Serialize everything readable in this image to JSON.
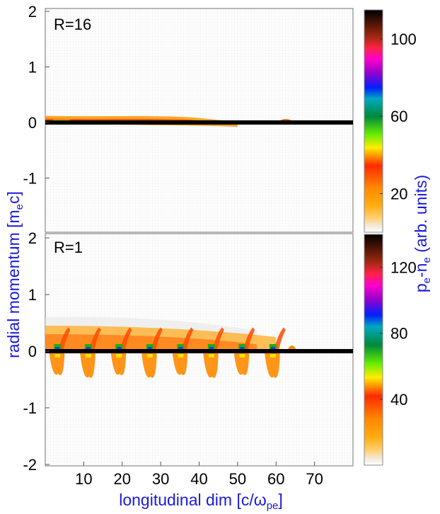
{
  "chart_data": [
    {
      "type": "heatmap",
      "panel_label": "R=16",
      "ylabel": "radial momentum [m",
      "ylabel_sub": "e",
      "ylabel_tail": "c]",
      "xlim": [
        0,
        80
      ],
      "ylim": [
        -2,
        2
      ],
      "yticks": [
        2,
        1,
        0,
        -1
      ],
      "colorbar": {
        "label_main": "p",
        "label_sub1": "e",
        "label_mid": "-n",
        "label_sub2": "e",
        "label_tail": " (arb. units)",
        "range": [
          0,
          115
        ],
        "ticks": [
          20,
          60,
          100
        ]
      },
      "features": {
        "beam_line_y": 0,
        "beam_line_x": [
          0,
          80
        ],
        "upper_band": {
          "x_start": 0,
          "x_end": 52,
          "y_max": 0.12
        },
        "lower_band": {
          "x_start": 5,
          "x_end": 50,
          "y_min": -0.08
        },
        "small_blob_x": 62.5
      }
    },
    {
      "type": "heatmap",
      "panel_label": "R=1",
      "xlabel": "longitudinal dim [c/ω",
      "xlabel_sub": "pe",
      "xlabel_tail": "]",
      "xlim": [
        0,
        80
      ],
      "ylim": [
        -2,
        2
      ],
      "xticks": [
        10,
        20,
        30,
        40,
        50,
        60,
        70
      ],
      "yticks": [
        2,
        1,
        0,
        -1,
        -2
      ],
      "colorbar": {
        "range": [
          0,
          140
        ],
        "ticks": [
          40,
          80,
          120
        ]
      },
      "features": {
        "beam_line_y": 0,
        "beam_line_x": [
          0,
          80
        ],
        "upper_band": {
          "x_start": 0,
          "x_end": 60,
          "y_max": 0.45
        },
        "oscillation_centers_x": [
          3,
          11,
          19,
          27,
          35,
          43,
          51,
          59
        ],
        "lower_lobe_depth": -0.4
      }
    }
  ]
}
